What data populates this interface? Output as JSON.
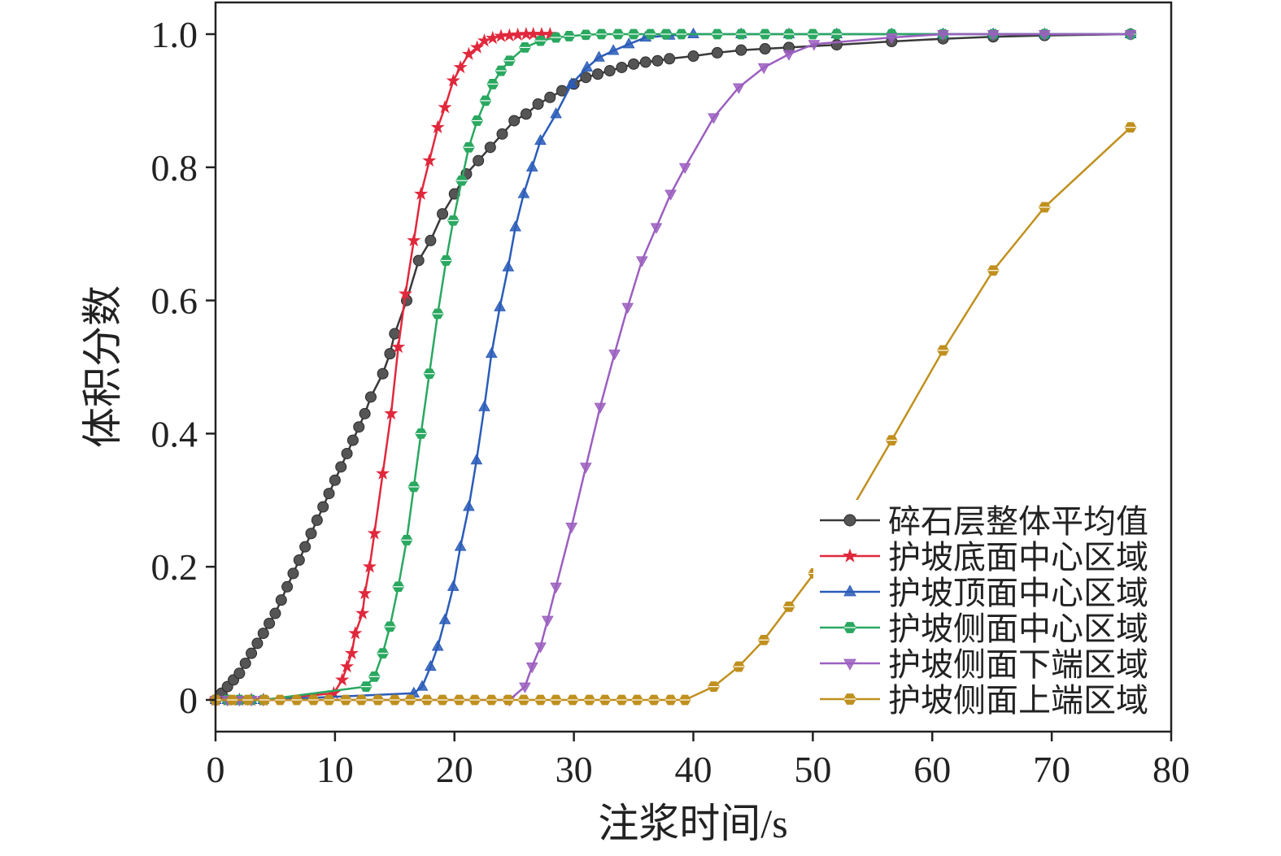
{
  "chart_data": {
    "type": "line",
    "xlabel": "注浆时间/s",
    "ylabel": "体积分数",
    "xlim": [
      0,
      80
    ],
    "ylim": [
      0,
      1.0
    ],
    "xticks": [
      0,
      10,
      20,
      30,
      40,
      50,
      60,
      70,
      80
    ],
    "xtick_labels": [
      "0",
      "10",
      "20",
      "30",
      "40",
      "50",
      "60",
      "70",
      "80"
    ],
    "yticks": [
      0,
      0.2,
      0.4,
      0.6,
      0.8,
      1.0
    ],
    "ytick_labels": [
      "0",
      "0.2",
      "0.4",
      "0.6",
      "0.8",
      "1.0"
    ],
    "grid": false,
    "legend_position": "bottom-right",
    "series": [
      {
        "name": "碎石层整体平均值",
        "color": "#3a3a3a",
        "marker": "circle",
        "x": [
          0,
          0.5,
          1,
          1.5,
          2,
          2.5,
          3,
          3.5,
          4,
          4.5,
          5,
          5.5,
          6,
          6.5,
          7,
          7.5,
          8,
          8.5,
          9,
          9.5,
          10,
          10.5,
          11,
          11.5,
          12,
          12.5,
          13,
          14,
          14.6,
          15,
          16,
          17,
          18,
          19,
          20,
          21,
          22,
          23,
          24,
          25,
          26,
          27,
          28,
          29,
          30,
          31,
          32,
          33,
          34,
          35,
          36,
          37,
          38,
          40,
          42,
          44,
          46,
          48,
          52,
          56.6,
          60.9,
          65.1,
          69.4,
          76.6
        ],
        "y": [
          0,
          0.01,
          0.02,
          0.03,
          0.04,
          0.055,
          0.07,
          0.085,
          0.1,
          0.115,
          0.13,
          0.15,
          0.17,
          0.19,
          0.21,
          0.23,
          0.25,
          0.27,
          0.29,
          0.31,
          0.33,
          0.35,
          0.37,
          0.39,
          0.41,
          0.43,
          0.455,
          0.49,
          0.52,
          0.55,
          0.6,
          0.66,
          0.69,
          0.73,
          0.76,
          0.79,
          0.81,
          0.83,
          0.85,
          0.87,
          0.88,
          0.895,
          0.905,
          0.915,
          0.925,
          0.935,
          0.94,
          0.945,
          0.95,
          0.955,
          0.958,
          0.96,
          0.963,
          0.967,
          0.972,
          0.976,
          0.978,
          0.98,
          0.984,
          0.989,
          0.993,
          0.996,
          0.998,
          1.0
        ]
      },
      {
        "name": "护坡底面中心区域",
        "color": "#e0283c",
        "marker": "star",
        "x": [
          0,
          1,
          2,
          3,
          4,
          9.9,
          10.6,
          11,
          11.4,
          11.7,
          12.3,
          12.5,
          12.9,
          13.3,
          14,
          14.7,
          15.3,
          15.9,
          16.6,
          17.2,
          17.9,
          18.6,
          19.2,
          19.9,
          20.5,
          21.2,
          21.9,
          22.5,
          23.2,
          23.9,
          24.6,
          25.3,
          26,
          26.6,
          27.3,
          28
        ],
        "y": [
          0,
          0,
          0,
          0,
          0,
          0.01,
          0.03,
          0.05,
          0.07,
          0.1,
          0.13,
          0.16,
          0.2,
          0.25,
          0.34,
          0.43,
          0.53,
          0.61,
          0.69,
          0.76,
          0.81,
          0.86,
          0.89,
          0.93,
          0.95,
          0.97,
          0.98,
          0.99,
          0.994,
          0.997,
          0.998,
          0.999,
          1.0,
          1.0,
          1.0,
          1.0
        ]
      },
      {
        "name": "护坡顶面中心区域",
        "color": "#2a5cb8",
        "marker": "triangle-up",
        "x": [
          0,
          1,
          2,
          3,
          4,
          16.6,
          17.3,
          18,
          18.6,
          19.2,
          19.9,
          20.5,
          21.2,
          21.85,
          22.5,
          23.1,
          23.8,
          24.5,
          25.1,
          25.8,
          26.5,
          27.2,
          28.5,
          29.8,
          31.1,
          32.1,
          33.3,
          34.6,
          36,
          38,
          40,
          44,
          48,
          52,
          56.6,
          60.9,
          65.1,
          69.4,
          76.6
        ],
        "y": [
          0,
          0,
          0,
          0,
          0,
          0.01,
          0.02,
          0.05,
          0.08,
          0.12,
          0.17,
          0.23,
          0.29,
          0.36,
          0.44,
          0.52,
          0.59,
          0.65,
          0.71,
          0.76,
          0.8,
          0.84,
          0.88,
          0.925,
          0.95,
          0.965,
          0.975,
          0.985,
          0.995,
          0.998,
          1.0,
          1.0,
          1.0,
          1.0,
          1.0,
          1.0,
          1.0,
          1.0,
          1.0
        ]
      },
      {
        "name": "护坡侧面中心区域",
        "color": "#2aa860",
        "marker": "hexagon",
        "x": [
          0,
          1,
          2,
          3,
          4,
          12.6,
          13.3,
          14,
          14.6,
          15.3,
          16,
          16.6,
          17.2,
          17.9,
          18.6,
          19.3,
          19.9,
          20.6,
          21.2,
          21.9,
          22.6,
          23.2,
          23.9,
          24.6,
          25.9,
          27.2,
          28.5,
          29.6,
          31,
          32.3,
          33.7,
          35,
          36.4,
          37.7,
          39,
          42,
          44,
          46,
          48,
          50,
          52,
          56.6,
          60.9,
          65.1,
          69.4,
          76.6
        ],
        "y": [
          0,
          0,
          0,
          0,
          0,
          0.02,
          0.035,
          0.07,
          0.11,
          0.17,
          0.24,
          0.32,
          0.4,
          0.49,
          0.58,
          0.66,
          0.72,
          0.78,
          0.83,
          0.87,
          0.9,
          0.925,
          0.945,
          0.96,
          0.98,
          0.99,
          0.995,
          0.997,
          0.999,
          1.0,
          1.0,
          1.0,
          1.0,
          1.0,
          1.0,
          1.0,
          1.0,
          1.0,
          1.0,
          1.0,
          1.0,
          1.0,
          1.0,
          1.0,
          1.0,
          1.0
        ]
      },
      {
        "name": "护坡侧面下端区域",
        "color": "#9b5fc0",
        "marker": "triangle-down",
        "x": [
          0,
          1,
          2,
          3,
          4,
          24.6,
          25.9,
          26.5,
          27.2,
          27.8,
          28.5,
          29.8,
          31,
          32.2,
          33.4,
          34.5,
          35.7,
          36.9,
          38.1,
          39.3,
          41.7,
          43.8,
          45.9,
          48,
          50.1,
          56.6,
          60.9,
          65.1,
          69.4,
          76.6
        ],
        "y": [
          0,
          0,
          0,
          0,
          0,
          0,
          0.02,
          0.05,
          0.08,
          0.12,
          0.17,
          0.26,
          0.35,
          0.44,
          0.52,
          0.59,
          0.66,
          0.71,
          0.76,
          0.8,
          0.875,
          0.92,
          0.95,
          0.97,
          0.985,
          0.995,
          1.0,
          1.0,
          1.0,
          1.0
        ]
      },
      {
        "name": "护坡侧面上端区域",
        "color": "#c0901e",
        "marker": "hexagon",
        "x": [
          0,
          1.4,
          2.7,
          4.1,
          5.4,
          6.8,
          8.2,
          9.5,
          10.9,
          12.2,
          13.6,
          15,
          16.3,
          17.7,
          19,
          20.4,
          21.7,
          23.1,
          24.5,
          25.8,
          27.2,
          28.5,
          29.9,
          31.3,
          32.6,
          34,
          35.3,
          36.7,
          38.1,
          39.3,
          41.7,
          43.8,
          45.9,
          48,
          50.1,
          56.6,
          60.9,
          65.1,
          69.4,
          76.6
        ],
        "y": [
          0,
          0,
          0,
          0,
          0,
          0,
          0,
          0,
          0,
          0,
          0,
          0,
          0,
          0,
          0,
          0,
          0,
          0,
          0,
          0,
          0,
          0,
          0,
          0,
          0,
          0,
          0,
          0,
          0,
          0,
          0.02,
          0.05,
          0.09,
          0.14,
          0.19,
          0.39,
          0.525,
          0.645,
          0.74,
          0.86
        ]
      }
    ]
  }
}
